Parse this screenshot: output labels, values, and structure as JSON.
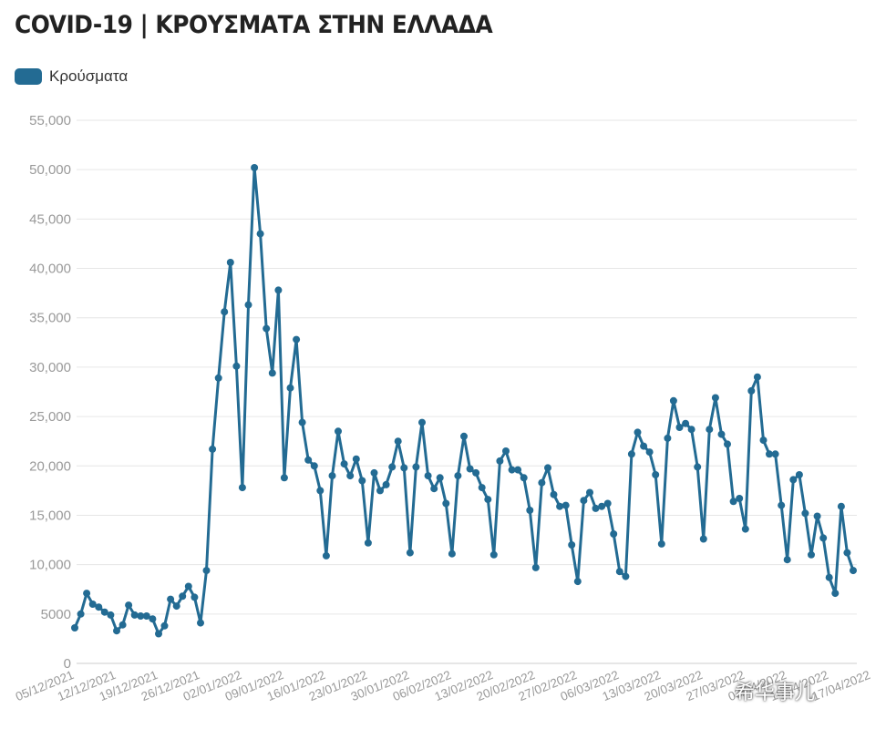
{
  "header": {
    "title": "COVID-19 | ΚΡΟΥΣΜΑΤΑ ΣΤΗΝ ΕΛΛΑΔΑ"
  },
  "watermark": {
    "text": "希华事儿"
  },
  "chart_data": {
    "type": "line",
    "title": "COVID-19 | ΚΡΟΥΣΜΑΤΑ ΣΤΗΝ ΕΛΛΑΔΑ",
    "xlabel": "",
    "ylabel": "",
    "legend": {
      "position": "top-left",
      "entries": [
        "Κρούσματα"
      ]
    },
    "grid": true,
    "color": "#236b93",
    "ylim": [
      0,
      55000
    ],
    "yticks": [
      0,
      5000,
      10000,
      15000,
      20000,
      25000,
      30000,
      35000,
      40000,
      45000,
      50000,
      55000
    ],
    "ytick_labels": [
      "0",
      "5000",
      "10,000",
      "15,000",
      "20,000",
      "25,000",
      "30,000",
      "35,000",
      "40,000",
      "45,000",
      "50,000",
      "55,000"
    ],
    "xtick_labels": [
      "05/12/2021",
      "12/12/2021",
      "19/12/2021",
      "26/12/2021",
      "02/01/2022",
      "09/01/2022",
      "16/01/2022",
      "23/01/2022",
      "30/01/2022",
      "06/02/2022",
      "13/02/2022",
      "20/02/2022",
      "27/02/2022",
      "06/03/2022",
      "13/03/2022",
      "20/03/2022",
      "27/03/2022",
      "03/04/2022",
      "10/04/2022",
      "17/04/2022"
    ],
    "x_start": "05/12/2021",
    "x_end": "17/04/2022",
    "series": [
      {
        "name": "Κρούσματα",
        "values": [
          3600,
          5000,
          7100,
          6000,
          5700,
          5200,
          4900,
          3300,
          3900,
          5900,
          4900,
          4800,
          4800,
          4500,
          3000,
          3800,
          6500,
          5800,
          6800,
          7800,
          6700,
          4100,
          9400,
          21700,
          28900,
          35600,
          40600,
          30100,
          17800,
          36300,
          50200,
          43500,
          33900,
          29400,
          37800,
          18800,
          27900,
          32800,
          24400,
          20600,
          20000,
          17500,
          10900,
          19000,
          23500,
          20200,
          19000,
          20700,
          18500,
          12200,
          19300,
          17500,
          18100,
          19900,
          22500,
          19800,
          11200,
          19900,
          24400,
          19000,
          17700,
          18800,
          16200,
          11100,
          19000,
          23000,
          19700,
          19300,
          17800,
          16600,
          11000,
          20500,
          21500,
          19600,
          19600,
          18800,
          15500,
          9700,
          18300,
          19800,
          17100,
          15900,
          16000,
          12000,
          8300,
          16500,
          17300,
          15700,
          15900,
          16200,
          13100,
          9300,
          8800,
          21200,
          23400,
          22000,
          21400,
          19100,
          12100,
          22800,
          26600,
          23900,
          24300,
          23700,
          19900,
          12600,
          23700,
          26900,
          23200,
          22200,
          16400,
          16700,
          13600,
          27600,
          29000,
          22600,
          21200,
          21200,
          16000,
          10500,
          18600,
          19100,
          15200,
          11000,
          14900,
          12700,
          8700,
          7100,
          15900,
          11200,
          9400
        ]
      }
    ]
  }
}
